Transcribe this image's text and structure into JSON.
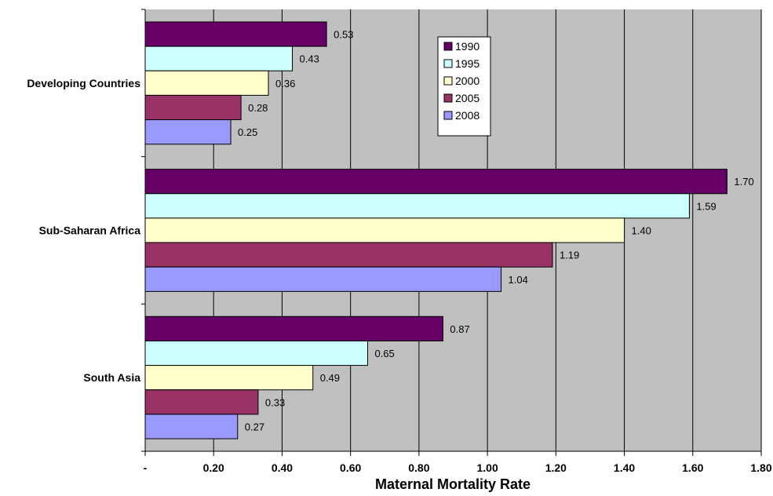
{
  "chart_data": {
    "type": "bar",
    "orientation": "horizontal",
    "categories": [
      "Developing Countries",
      "Sub-Saharan Africa",
      "South Asia"
    ],
    "series": [
      {
        "name": "1990",
        "color": "#660066",
        "values": [
          0.53,
          1.7,
          0.87
        ],
        "labels": [
          "0.53",
          "1.70",
          "0.87"
        ]
      },
      {
        "name": "1995",
        "color": "#ccffff",
        "values": [
          0.43,
          1.59,
          0.65
        ],
        "labels": [
          "0.43",
          "1.59",
          "0.65"
        ]
      },
      {
        "name": "2000",
        "color": "#ffffcc",
        "values": [
          0.36,
          1.4,
          0.49
        ],
        "labels": [
          "0.36",
          "1.40",
          "0.49"
        ]
      },
      {
        "name": "2005",
        "color": "#993366",
        "values": [
          0.28,
          1.19,
          0.33
        ],
        "labels": [
          "0.28",
          "1.19",
          "0.33"
        ]
      },
      {
        "name": "2008",
        "color": "#9999ff",
        "values": [
          0.25,
          1.04,
          0.27
        ],
        "labels": [
          "0.25",
          "1.04",
          "0.27"
        ]
      }
    ],
    "xlim": [
      0,
      1.8
    ],
    "xticks": [
      0,
      0.2,
      0.4,
      0.6,
      0.8,
      1.0,
      1.2,
      1.4,
      1.6,
      1.8
    ],
    "xtick_labels": [
      "-",
      "0.20",
      "0.40",
      "0.60",
      "0.80",
      "1.00",
      "1.20",
      "1.40",
      "1.60",
      "1.80"
    ],
    "xlabel": "Maternal Mortality Rate",
    "ylabel": "",
    "title": "",
    "grid": true,
    "legend_position": "top-center",
    "plot_background": "#c0c0c0"
  }
}
